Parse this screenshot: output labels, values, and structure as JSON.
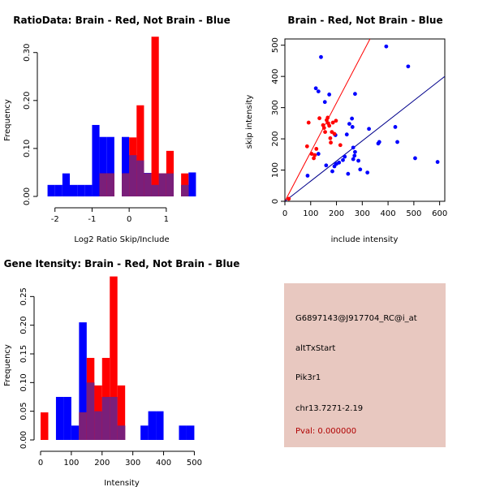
{
  "chart_data": [
    {
      "type": "histogram",
      "title": "RatioData: Brain - Red, Not Brain - Blue",
      "xlabel": "Log2 Ratio Skip/Include",
      "ylabel": "Frequency",
      "xlim": [
        -2.3,
        1.9
      ],
      "ylim": [
        0,
        0.33
      ],
      "xticks": [
        -2,
        -1,
        0,
        1
      ],
      "yticks": [
        0.0,
        0.1,
        0.2,
        0.3
      ],
      "yticklabels": [
        "0.00",
        "0.10",
        "0.20",
        "0.30"
      ],
      "bin_width": 0.2,
      "bin_starts": [
        -2.2,
        -2.0,
        -1.8,
        -1.6,
        -1.4,
        -1.2,
        -1.0,
        -0.8,
        -0.6,
        -0.4,
        -0.2,
        0.0,
        0.2,
        0.4,
        0.6,
        0.8,
        1.0,
        1.2,
        1.4,
        1.6
      ],
      "series": [
        {
          "name": "Not Brain",
          "color": "#0000ff",
          "values": [
            0.024,
            0.024,
            0.048,
            0.024,
            0.024,
            0.024,
            0.149,
            0.124,
            0.124,
            0.0,
            0.124,
            0.086,
            0.075,
            0.049,
            0.024,
            0.048,
            0.048,
            0.0,
            0.024,
            0.05
          ]
        },
        {
          "name": "Brain",
          "color": "#ff0000",
          "values": [
            0.0,
            0.0,
            0.0,
            0.0,
            0.0,
            0.0,
            0.0,
            0.048,
            0.048,
            0.0,
            0.048,
            0.123,
            0.19,
            0.048,
            0.333,
            0.048,
            0.095,
            0.0,
            0.048,
            0.0
          ]
        }
      ]
    },
    {
      "type": "scatter",
      "title": "Brain - Red, Not Brain - Blue",
      "xlabel": "include intensity",
      "ylabel": "skip intensity",
      "xlim": [
        0,
        620
      ],
      "ylim": [
        0,
        520
      ],
      "xticks": [
        0,
        100,
        200,
        300,
        400,
        500,
        600
      ],
      "yticks": [
        0,
        100,
        200,
        300,
        400,
        500
      ],
      "series": [
        {
          "name": "Not Brain",
          "color": "#0000ff",
          "points": [
            [
              88,
              82
            ],
            [
              120,
              362
            ],
            [
              130,
              352
            ],
            [
              140,
              462
            ],
            [
              155,
              318
            ],
            [
              172,
              342
            ],
            [
              196,
              212
            ],
            [
              184,
              96
            ],
            [
              198,
              120
            ],
            [
              210,
              124
            ],
            [
              225,
              132
            ],
            [
              240,
              214
            ],
            [
              245,
              88
            ],
            [
              250,
              248
            ],
            [
              262,
              238
            ],
            [
              265,
              172
            ],
            [
              270,
              146
            ],
            [
              272,
              158
            ],
            [
              285,
              130
            ],
            [
              292,
              102
            ],
            [
              272,
              344
            ],
            [
              320,
              92
            ],
            [
              326,
              232
            ],
            [
              362,
              185
            ],
            [
              366,
              190
            ],
            [
              428,
              238
            ],
            [
              436,
              190
            ],
            [
              478,
              432
            ],
            [
              505,
              138
            ],
            [
              592,
              126
            ],
            [
              393,
              496
            ],
            [
              192,
              112
            ],
            [
              260,
              265
            ],
            [
              265,
              135
            ],
            [
              232,
              143
            ],
            [
              160,
              115
            ],
            [
              130,
              152
            ],
            [
              200,
              120
            ]
          ]
        },
        {
          "name": "Brain",
          "color": "#ff0000",
          "points": [
            [
              15,
              8
            ],
            [
              92,
              252
            ],
            [
              86,
              176
            ],
            [
              104,
              152
            ],
            [
              116,
              148
            ],
            [
              122,
              168
            ],
            [
              134,
              266
            ],
            [
              148,
              244
            ],
            [
              152,
              235
            ],
            [
              156,
              222
            ],
            [
              162,
              260
            ],
            [
              166,
              268
            ],
            [
              172,
              242
            ],
            [
              176,
              202
            ],
            [
              178,
              188
            ],
            [
              182,
              222
            ],
            [
              186,
              252
            ],
            [
              192,
              216
            ],
            [
              198,
              258
            ],
            [
              215,
              180
            ],
            [
              168,
              250
            ],
            [
              112,
              138
            ]
          ]
        }
      ],
      "lines": [
        {
          "name": "Brain fit",
          "color": "#ff0000",
          "from": [
            0,
            0
          ],
          "to": [
            330,
            520
          ]
        },
        {
          "name": "Not Brain fit",
          "color": "#00008b",
          "from": [
            0,
            0
          ],
          "to": [
            620,
            400
          ]
        }
      ]
    },
    {
      "type": "histogram",
      "title": "Gene Itensity: Brain - Red, Not Brain - Blue",
      "xlabel": "Intensity",
      "ylabel": "Frequency",
      "xlim": [
        0,
        520
      ],
      "ylim": [
        0,
        0.3
      ],
      "xticks": [
        0,
        100,
        200,
        300,
        400,
        500
      ],
      "yticks": [
        0.0,
        0.05,
        0.1,
        0.15,
        0.2,
        0.25
      ],
      "yticklabels": [
        "0.00",
        "0.05",
        "0.10",
        "0.15",
        "0.20",
        "0.25"
      ],
      "bin_width": 25,
      "bin_starts": [
        0,
        25,
        50,
        75,
        100,
        125,
        150,
        175,
        200,
        225,
        250,
        275,
        300,
        325,
        350,
        375,
        400,
        425,
        450,
        475
      ],
      "series": [
        {
          "name": "Not Brain",
          "color": "#0000ff",
          "values": [
            0.0,
            0.0,
            0.075,
            0.075,
            0.025,
            0.205,
            0.1,
            0.05,
            0.075,
            0.075,
            0.025,
            0.0,
            0.0,
            0.025,
            0.05,
            0.05,
            0.0,
            0.0,
            0.025,
            0.025
          ]
        },
        {
          "name": "Brain",
          "color": "#ff0000",
          "values": [
            0.048,
            0.0,
            0.0,
            0.0,
            0.0,
            0.048,
            0.143,
            0.095,
            0.143,
            0.285,
            0.095,
            0.0,
            0.0,
            0.0,
            0.0,
            0.0,
            0.0,
            0.0,
            0.0,
            0.0
          ]
        }
      ]
    }
  ],
  "info": {
    "probe_id": "G6897143@J917704_RC@i_at",
    "event_type": "altTxStart",
    "gene": "Pik3r1",
    "locus": "chr13.7271-2.19",
    "pval": "Pval: 0.000000"
  }
}
